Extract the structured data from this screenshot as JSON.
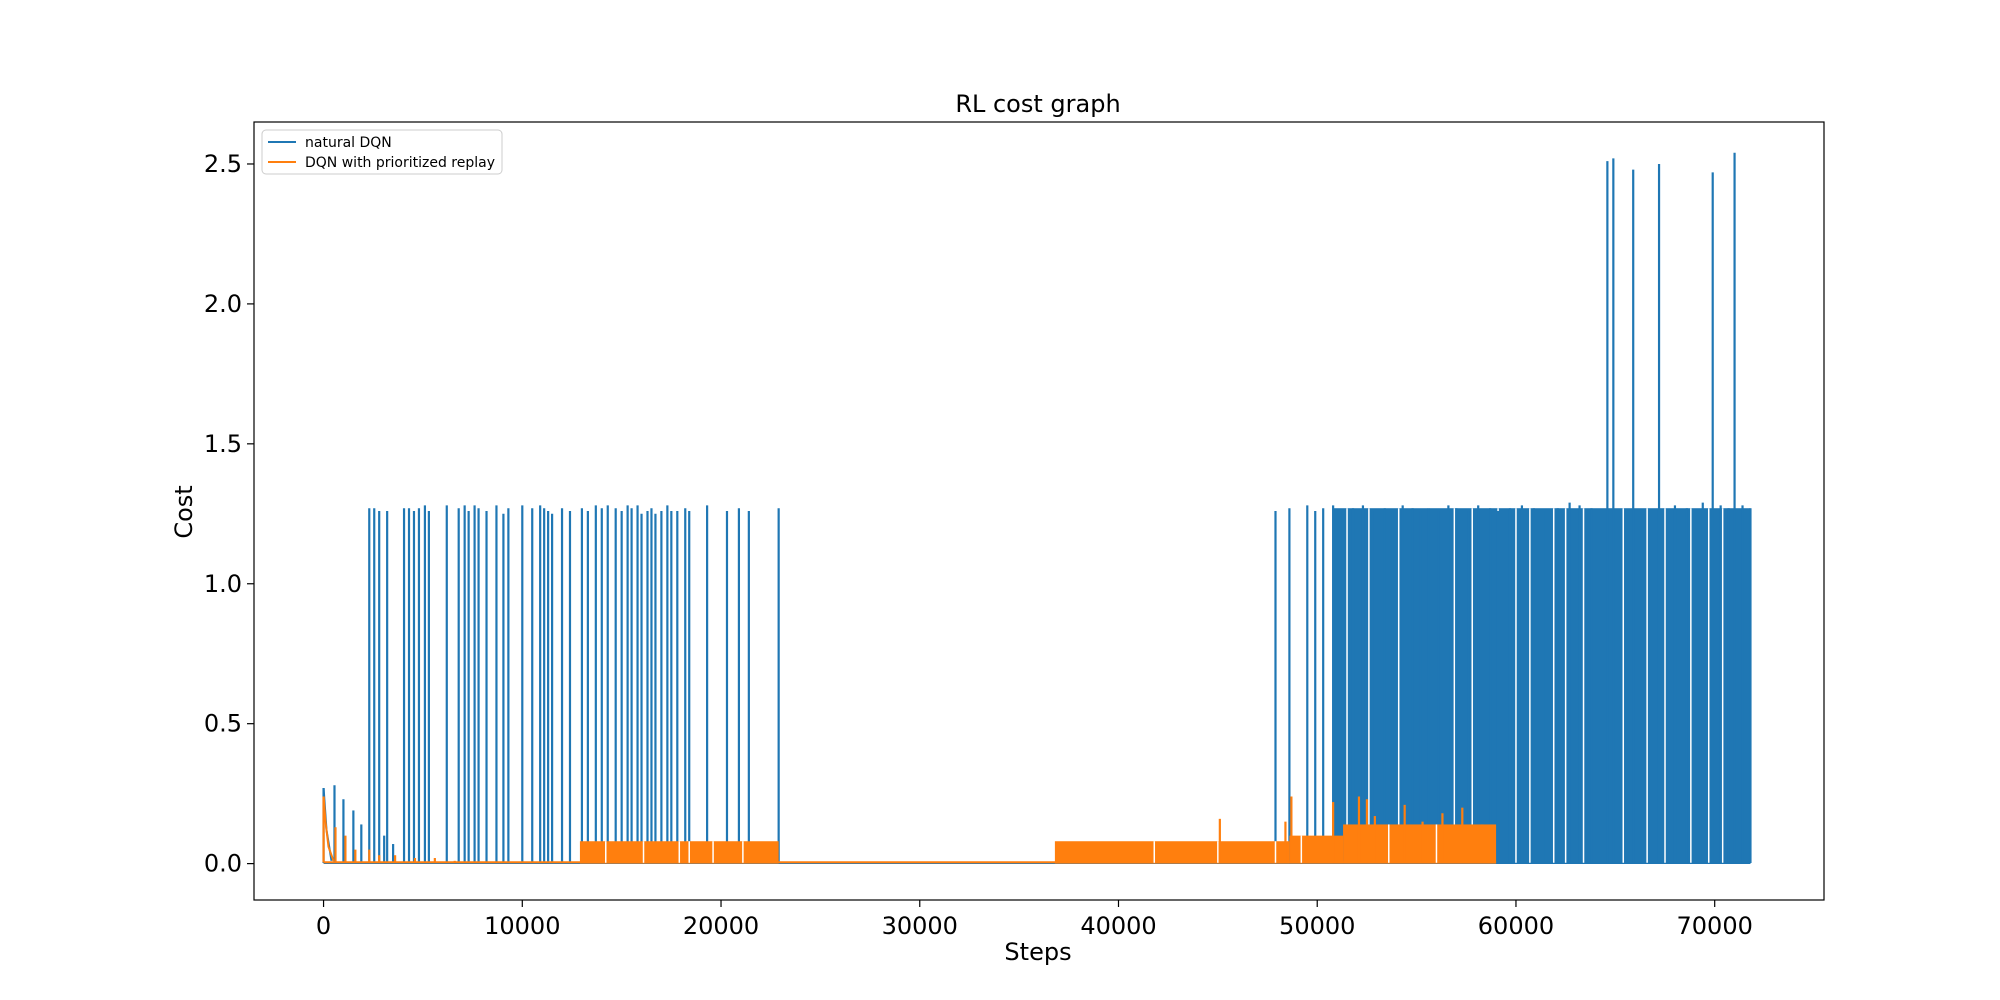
{
  "chart_data": {
    "type": "line",
    "title": "RL cost graph",
    "xlabel": "Steps",
    "ylabel": "Cost",
    "xlim": [
      -3500,
      75500
    ],
    "ylim": [
      -0.13,
      2.65
    ],
    "x_ticks": [
      0,
      10000,
      20000,
      30000,
      40000,
      50000,
      60000,
      70000
    ],
    "x_tick_labels": [
      "0",
      "10000",
      "20000",
      "30000",
      "40000",
      "50000",
      "60000",
      "70000"
    ],
    "y_ticks": [
      0.0,
      0.5,
      1.0,
      1.5,
      2.0,
      2.5
    ],
    "y_tick_labels": [
      "0.0",
      "0.5",
      "1.0",
      "1.5",
      "2.0",
      "2.5"
    ],
    "grid": false,
    "legend_position": "upper-left",
    "series": [
      {
        "name": "natural DQN",
        "color": "#1f77b4",
        "baseline": 0.002,
        "initial_decay": [
          [
            0,
            0.27
          ],
          [
            150,
            0.12
          ],
          [
            400,
            0.01
          ]
        ],
        "spikes": [
          [
            0,
            0.27
          ],
          [
            550,
            0.28
          ],
          [
            1000,
            0.23
          ],
          [
            1500,
            0.19
          ],
          [
            1900,
            0.14
          ],
          [
            2300,
            1.27
          ],
          [
            2550,
            1.27
          ],
          [
            2800,
            1.26
          ],
          [
            3050,
            0.1
          ],
          [
            3200,
            1.26
          ],
          [
            3500,
            0.07
          ],
          [
            4050,
            1.27
          ],
          [
            4300,
            1.27
          ],
          [
            4550,
            1.26
          ],
          [
            4800,
            1.27
          ],
          [
            5100,
            1.28
          ],
          [
            5300,
            1.26
          ],
          [
            6200,
            1.28
          ],
          [
            6800,
            1.27
          ],
          [
            7100,
            1.28
          ],
          [
            7300,
            1.26
          ],
          [
            7600,
            1.28
          ],
          [
            7800,
            1.27
          ],
          [
            8200,
            1.26
          ],
          [
            8700,
            1.28
          ],
          [
            9050,
            1.25
          ],
          [
            9300,
            1.27
          ],
          [
            10000,
            1.28
          ],
          [
            10500,
            1.27
          ],
          [
            10900,
            1.28
          ],
          [
            11100,
            1.27
          ],
          [
            11300,
            1.26
          ],
          [
            11500,
            1.25
          ],
          [
            12000,
            1.27
          ],
          [
            12400,
            1.26
          ],
          [
            13000,
            1.27
          ],
          [
            13300,
            1.26
          ],
          [
            13700,
            1.28
          ],
          [
            14000,
            1.27
          ],
          [
            14300,
            1.28
          ],
          [
            14700,
            1.27
          ],
          [
            15000,
            1.26
          ],
          [
            15300,
            1.28
          ],
          [
            15500,
            1.27
          ],
          [
            15800,
            1.28
          ],
          [
            16000,
            1.25
          ],
          [
            16300,
            1.26
          ],
          [
            16500,
            1.27
          ],
          [
            16700,
            1.25
          ],
          [
            17000,
            1.26
          ],
          [
            17300,
            1.28
          ],
          [
            17500,
            1.26
          ],
          [
            17800,
            1.26
          ],
          [
            18200,
            1.27
          ],
          [
            18400,
            1.26
          ],
          [
            19300,
            1.28
          ],
          [
            20300,
            1.26
          ],
          [
            20900,
            1.27
          ],
          [
            21400,
            1.26
          ],
          [
            22900,
            1.27
          ],
          [
            47900,
            1.26
          ],
          [
            48600,
            1.27
          ],
          [
            49500,
            1.28
          ],
          [
            49900,
            1.26
          ],
          [
            50300,
            1.27
          ],
          [
            50800,
            1.28
          ],
          [
            51300,
            1.26
          ],
          [
            51800,
            1.27
          ],
          [
            52300,
            1.28
          ],
          [
            52800,
            1.26
          ],
          [
            53400,
            1.27
          ],
          [
            53800,
            1.26
          ],
          [
            54300,
            1.28
          ],
          [
            54800,
            1.27
          ],
          [
            55200,
            1.26
          ],
          [
            55600,
            1.27
          ],
          [
            56100,
            1.26
          ],
          [
            56600,
            1.28
          ],
          [
            57000,
            1.27
          ],
          [
            57600,
            1.26
          ],
          [
            58100,
            1.28
          ],
          [
            58700,
            1.27
          ],
          [
            59100,
            1.26
          ],
          [
            59700,
            1.27
          ],
          [
            60300,
            1.28
          ],
          [
            60900,
            1.27
          ],
          [
            61500,
            1.26
          ],
          [
            62100,
            1.27
          ],
          [
            62700,
            1.29
          ],
          [
            63200,
            1.28
          ],
          [
            63800,
            1.27
          ],
          [
            64600,
            2.51
          ],
          [
            64900,
            2.52
          ],
          [
            65900,
            2.48
          ],
          [
            67200,
            2.5
          ],
          [
            68000,
            1.28
          ],
          [
            68600,
            1.27
          ],
          [
            69400,
            1.29
          ],
          [
            69900,
            2.47
          ],
          [
            70300,
            1.28
          ],
          [
            70700,
            1.27
          ],
          [
            71000,
            2.54
          ],
          [
            71400,
            1.28
          ],
          [
            71800,
            1.27
          ]
        ],
        "dense_band": {
          "x_start": 50800,
          "x_end": 71800,
          "low": 0.0,
          "high": 1.27
        },
        "dense_gaps": [
          51500,
          52600,
          54100,
          55600,
          56900,
          57800,
          59100,
          60000,
          60700,
          61900,
          62500,
          63400,
          65400,
          66600,
          67500,
          68800,
          69700,
          70400
        ]
      },
      {
        "name": "DQN with prioritized replay",
        "color": "#ff7f0e",
        "baseline": 0.005,
        "initial_decay": [
          [
            0,
            0.24
          ],
          [
            100,
            0.15
          ],
          [
            250,
            0.06
          ],
          [
            500,
            0.01
          ]
        ],
        "spikes": [
          [
            0,
            0.24
          ],
          [
            600,
            0.13
          ],
          [
            1100,
            0.1
          ],
          [
            1600,
            0.05
          ],
          [
            2300,
            0.05
          ],
          [
            2800,
            0.03
          ],
          [
            3600,
            0.03
          ],
          [
            4600,
            0.02
          ],
          [
            5600,
            0.02
          ],
          [
            6600,
            0.01
          ],
          [
            45100,
            0.16
          ],
          [
            48400,
            0.15
          ],
          [
            48700,
            0.24
          ],
          [
            50800,
            0.22
          ],
          [
            52100,
            0.24
          ],
          [
            52500,
            0.23
          ],
          [
            52900,
            0.17
          ],
          [
            54400,
            0.21
          ],
          [
            55300,
            0.15
          ],
          [
            56300,
            0.18
          ],
          [
            57300,
            0.2
          ],
          [
            58300,
            0.14
          ]
        ],
        "dense_bands": [
          {
            "x_start": 12900,
            "x_end": 22900,
            "low": 0.0,
            "high": 0.08
          },
          {
            "x_start": 36800,
            "x_end": 48600,
            "low": 0.0,
            "high": 0.08
          },
          {
            "x_start": 48600,
            "x_end": 51300,
            "low": 0.0,
            "high": 0.1
          },
          {
            "x_start": 51300,
            "x_end": 59000,
            "low": 0.0,
            "high": 0.14
          }
        ],
        "dense_gaps": [
          14200,
          16100,
          17900,
          18400,
          19600,
          21100,
          41800,
          45000,
          47900,
          49200,
          53600,
          56000
        ]
      }
    ]
  }
}
